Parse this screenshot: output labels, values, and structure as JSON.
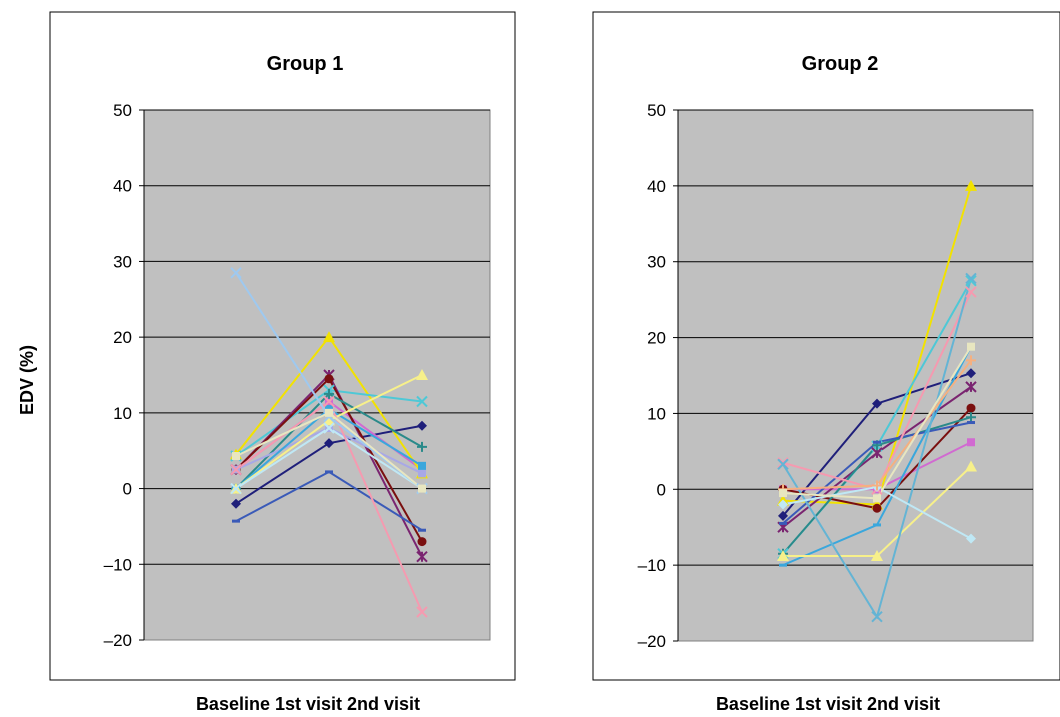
{
  "ylabel": "EDV (%)",
  "colors": [
    "#1f1f7a",
    "#d16ad1",
    "#f2e200",
    "#4ec8d6",
    "#7a2470",
    "#7a0f0f",
    "#2a8a8a",
    "#1a50c8",
    "#a8a8e6",
    "#7a1a5a",
    "#3aa7dc",
    "#bfe8f5",
    "#f7f08a",
    "#f59ab0",
    "#9ec9f0",
    "#e8e6c0",
    "#e89a9a",
    "#64b4d4",
    "#2a4ea8",
    "#f5a9d9"
  ],
  "chart_data": [
    {
      "type": "line",
      "title": "Group 1",
      "xlabel": "Baseline 1st  visit 2nd visit",
      "categories": [
        "Baseline",
        "1st visit",
        "2nd visit"
      ],
      "ylim": [
        -20,
        50
      ],
      "yticks": [
        -20,
        -10,
        0,
        10,
        20,
        30,
        40,
        50
      ],
      "grid": true,
      "series": [
        {
          "values": [
            -2.0,
            6.0,
            8.3
          ],
          "marker": "diamond",
          "color": "#1f1f7a"
        },
        {
          "values": [
            2.5,
            11.5,
            2.5
          ],
          "marker": "square",
          "color": "#d16ad1"
        },
        {
          "values": [
            4.5,
            20.0,
            2.0
          ],
          "marker": "triangle",
          "color": "#f2e200"
        },
        {
          "values": [
            4.3,
            13.0,
            11.5
          ],
          "marker": "x",
          "color": "#4ec8d6"
        },
        {
          "values": [
            2.5,
            15.0,
            -9.0
          ],
          "marker": "star",
          "color": "#7a2470"
        },
        {
          "values": [
            2.5,
            14.5,
            -7.0
          ],
          "marker": "circle",
          "color": "#7a0f0f"
        },
        {
          "values": [
            0.0,
            12.5,
            5.5
          ],
          "marker": "plus",
          "color": "#2a8a8a"
        },
        {
          "values": [
            -4.3,
            2.2,
            -5.5
          ],
          "marker": "dash",
          "color": "#3a5ab8"
        },
        {
          "values": [
            2.5,
            8.0,
            2.0
          ],
          "marker": "square",
          "color": "#a8a8e6"
        },
        {
          "values": [
            0.0,
            10.5,
            3.0
          ],
          "marker": "square",
          "color": "#3aa7dc"
        },
        {
          "values": [
            0.0,
            9.0,
            15.0
          ],
          "marker": "triangle",
          "color": "#f7f08a"
        },
        {
          "values": [
            0.0,
            8.0,
            0.0
          ],
          "marker": "x",
          "color": "#bfe8f5"
        },
        {
          "values": [
            2.5,
            11.5,
            -16.3
          ],
          "marker": "x",
          "color": "#f59ab0"
        },
        {
          "values": [
            28.5,
            9.5,
            0.0
          ],
          "marker": "x",
          "color": "#9ec9f0"
        },
        {
          "values": [
            4.3,
            10.0,
            0.0
          ],
          "marker": "square",
          "color": "#e8e6c0"
        }
      ]
    },
    {
      "type": "line",
      "title": "Group 2",
      "xlabel": "Baseline 1st visit 2nd visit",
      "categories": [
        "Baseline",
        "1st visit",
        "2nd visit"
      ],
      "ylim": [
        -20,
        50
      ],
      "yticks": [
        -20,
        -10,
        0,
        10,
        20,
        30,
        40,
        50
      ],
      "grid": true,
      "series": [
        {
          "values": [
            -3.5,
            11.3,
            15.3
          ],
          "marker": "diamond",
          "color": "#1f1f7a"
        },
        {
          "values": [
            0.0,
            0.0,
            6.2
          ],
          "marker": "square",
          "color": "#d16ad1"
        },
        {
          "values": [
            -1.5,
            -2.0,
            40.0
          ],
          "marker": "triangle",
          "color": "#f2e200"
        },
        {
          "values": [
            -8.5,
            5.7,
            27.5
          ],
          "marker": "x",
          "color": "#4ec8d6"
        },
        {
          "values": [
            -5.0,
            4.8,
            13.5
          ],
          "marker": "star",
          "color": "#7a2470"
        },
        {
          "values": [
            0.0,
            -2.5,
            10.7
          ],
          "marker": "circle",
          "color": "#7a0f0f"
        },
        {
          "values": [
            -8.5,
            5.8,
            9.5
          ],
          "marker": "plus",
          "color": "#2a8a8a"
        },
        {
          "values": [
            -4.5,
            6.2,
            8.8
          ],
          "marker": "dash",
          "color": "#3a5ab8"
        },
        {
          "values": [
            -10.0,
            -4.7,
            18.8
          ],
          "marker": "dash",
          "color": "#3aa7dc"
        },
        {
          "values": [
            -8.8,
            -8.8,
            3.0
          ],
          "marker": "triangle",
          "color": "#f7f08a"
        },
        {
          "values": [
            3.5,
            0.0,
            26.0
          ],
          "marker": "x",
          "color": "#f59ab0"
        },
        {
          "values": [
            3.3,
            -16.8,
            27.8
          ],
          "marker": "x",
          "color": "#64b4d4"
        },
        {
          "values": [
            -2.0,
            0.3,
            -6.5
          ],
          "marker": "diamond",
          "color": "#bfe8f5"
        },
        {
          "values": [
            0.0,
            0.5,
            17.0
          ],
          "marker": "plus",
          "color": "#f5b080"
        },
        {
          "values": [
            -0.5,
            -1.2,
            18.8
          ],
          "marker": "square",
          "color": "#e8e6c0"
        }
      ]
    }
  ]
}
